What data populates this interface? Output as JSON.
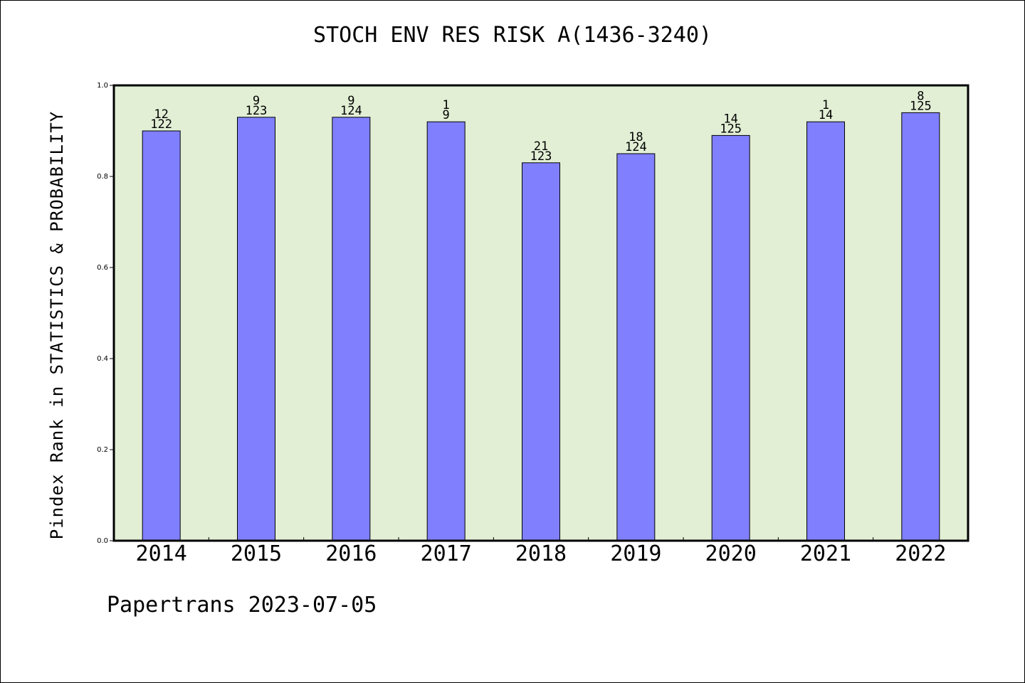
{
  "chart_data": {
    "type": "bar",
    "title": "STOCH ENV RES RISK A(1436-3240)",
    "xlabel": "",
    "ylabel": "Pindex Rank in STATISTICS & PROBABILITY",
    "ylim": [
      0,
      1.0
    ],
    "yticks": [
      "0.0",
      "0.2",
      "0.4",
      "0.6",
      "0.8",
      "1.0"
    ],
    "grid": false,
    "categories": [
      "2014",
      "2015",
      "2016",
      "2017",
      "2018",
      "2019",
      "2020",
      "2021",
      "2022"
    ],
    "values": [
      0.9,
      0.93,
      0.93,
      0.92,
      0.83,
      0.85,
      0.89,
      0.92,
      0.94
    ],
    "rank_labels": [
      "12",
      "9",
      "9",
      "1",
      "21",
      "18",
      "14",
      "1",
      "8"
    ],
    "total_labels": [
      "122",
      "123",
      "124",
      "9",
      "123",
      "124",
      "125",
      "14",
      "125"
    ]
  },
  "footer": "Papertrans 2023-07-05",
  "colors": {
    "plot_background": "#e2efd5",
    "bar_fill": "#8080ff",
    "axis": "#000000"
  }
}
